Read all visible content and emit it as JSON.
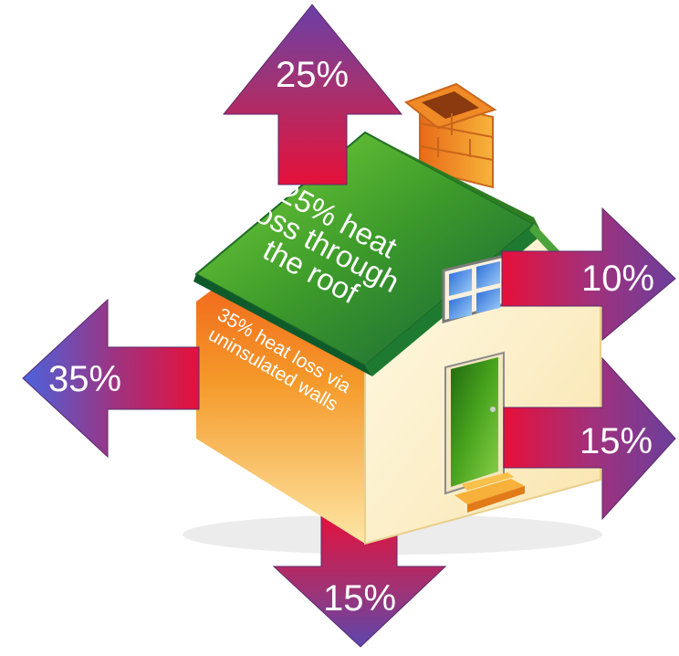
{
  "arrows": {
    "roof": "25%",
    "left_wall": "35%",
    "window": "10%",
    "door": "15%",
    "floor": "15%"
  },
  "roof_label": [
    "25% heat",
    "loss through",
    "the roof"
  ],
  "wall_label": [
    "35% heat loss via",
    "uninsulated walls"
  ],
  "colors": {
    "arrow_red": "#e0103a",
    "arrow_purple": "#7b3f9a",
    "arrow_blue": "#4a62d8",
    "roof_green": "#3c9a2a",
    "wall_orange": "#f08a1e",
    "door_green": "#3a9b1e"
  }
}
